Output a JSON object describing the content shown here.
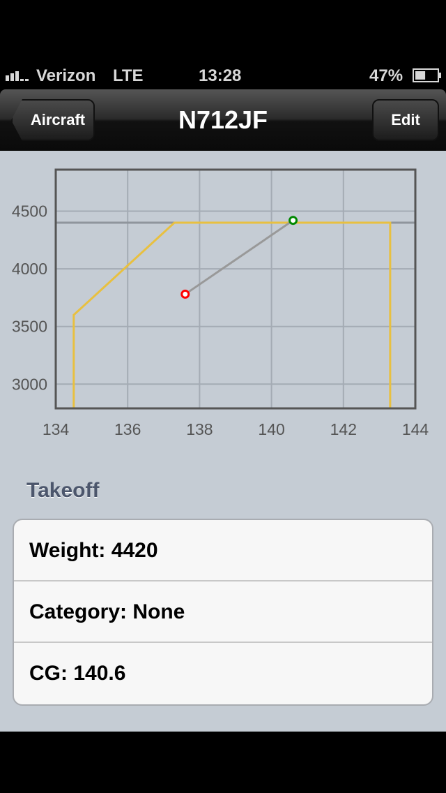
{
  "status": {
    "carrier": "Verizon",
    "network": "LTE",
    "time": "13:28",
    "battery": "47%",
    "battery_level": 0.47
  },
  "nav": {
    "back_label": "Aircraft",
    "title": "N712JF",
    "edit_label": "Edit"
  },
  "chart_data": {
    "type": "line",
    "xlim": [
      134,
      144
    ],
    "ylim": [
      2790,
      4860
    ],
    "xticks": [
      134,
      136,
      138,
      140,
      142,
      144
    ],
    "yticks": [
      3000,
      3500,
      4000,
      4500
    ],
    "grid": true,
    "max_weight_line": 4400,
    "envelope": {
      "color": "#e8c040",
      "points": [
        [
          134.5,
          2790
        ],
        [
          134.5,
          3600
        ],
        [
          137.3,
          4400
        ],
        [
          143.3,
          4400
        ],
        [
          143.3,
          2790
        ]
      ]
    },
    "path": {
      "color": "#999999",
      "points": [
        [
          137.6,
          3780
        ],
        [
          140.6,
          4420
        ]
      ]
    },
    "markers": [
      {
        "x": 137.6,
        "y": 3780,
        "color": "#ff0000"
      },
      {
        "x": 140.6,
        "y": 4420,
        "color": "#008800"
      }
    ]
  },
  "section": {
    "title": "Takeoff"
  },
  "rows": [
    "Weight: 4420",
    "Category: None",
    "CG: 140.6"
  ]
}
